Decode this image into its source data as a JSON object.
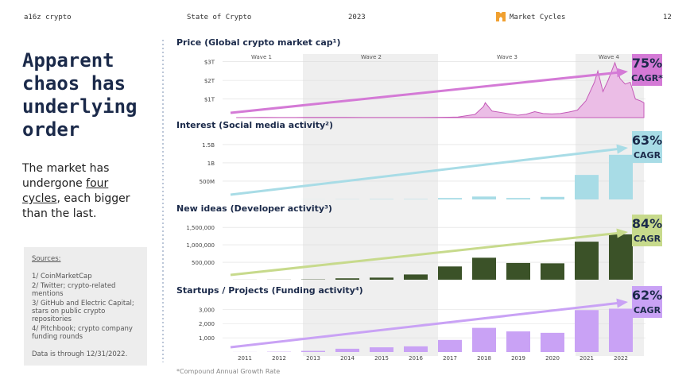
{
  "header": {
    "brand": "a16z crypto",
    "report": "State of Crypto",
    "year": "2023",
    "section": "Market Cycles",
    "page": "12"
  },
  "headline": "Apparent chaos has underlying order",
  "body": [
    "The market has undergone ",
    "four cycles",
    ", each bigger than the last."
  ],
  "sources": {
    "title": "Sources:",
    "items": [
      "1/ CoinMarketCap",
      "2/ Twitter; crypto-related mentions",
      "3/ GitHub and Electric Capital; stars on public crypto repositories",
      "4/ Pitchbook; crypto company funding rounds"
    ],
    "note": "Data is through 12/31/2022."
  },
  "waves": [
    "Wave 1",
    "Wave 2",
    "Wave 3",
    "Wave 4"
  ],
  "footnote": "*Compound Annual Growth Rate",
  "chart_data": [
    {
      "type": "area",
      "title": "Price (Global crypto market cap¹)",
      "x": [
        2010.75,
        2011,
        2011.5,
        2012,
        2012.5,
        2013,
        2013.5,
        2013.9,
        2014,
        2014.5,
        2015,
        2015.5,
        2016,
        2016.5,
        2017,
        2017.25,
        2017.5,
        2017.75,
        2018,
        2018.05,
        2018.25,
        2018.5,
        2018.75,
        2019,
        2019.25,
        2019.5,
        2019.75,
        2020,
        2020.25,
        2020.5,
        2020.75,
        2021,
        2021.25,
        2021.35,
        2021.5,
        2021.65,
        2021.85,
        2022,
        2022.15,
        2022.3,
        2022.45,
        2022.6,
        2022.7
      ],
      "values": [
        0,
        0,
        0.01,
        0.005,
        0.007,
        0.01,
        0.01,
        0.013,
        0.01,
        0.008,
        0.004,
        0.004,
        0.007,
        0.01,
        0.02,
        0.03,
        0.1,
        0.17,
        0.6,
        0.8,
        0.35,
        0.28,
        0.2,
        0.13,
        0.18,
        0.32,
        0.22,
        0.2,
        0.22,
        0.3,
        0.4,
        0.9,
        1.9,
        2.5,
        1.4,
        2.0,
        2.95,
        2.1,
        1.8,
        1.9,
        1.0,
        0.9,
        0.8
      ],
      "xlim": [
        2010.7,
        2022.7
      ],
      "ylim": [
        0,
        3.2
      ],
      "yticks": [
        {
          "value": 1,
          "label": "$1T"
        },
        {
          "value": 2,
          "label": "$2T"
        },
        {
          "value": 3,
          "label": "$3T"
        }
      ],
      "color": "#c45ab8",
      "grid": true,
      "annotation": [
        "75%",
        "CAGR*"
      ],
      "annotation_color": "#d47ad6"
    },
    {
      "type": "bar",
      "title": "Interest (Social media activity²)",
      "values": [
        0,
        0,
        0.002,
        0.005,
        0.01,
        0.01,
        0.04,
        0.08,
        0.04,
        0.07,
        0.67,
        1.22
      ],
      "ylim": [
        0,
        1.65
      ],
      "yticks": [
        {
          "value": 0.5,
          "label": "500M"
        },
        {
          "value": 1,
          "label": "1B"
        },
        {
          "value": 1.5,
          "label": "1.5B"
        }
      ],
      "color": "#a8dce6",
      "grid": true,
      "annotation": [
        "63%",
        "CAGR"
      ],
      "annotation_color": "#a8dce6"
    },
    {
      "type": "bar",
      "title": "New ideas (Developer activity³)",
      "values": [
        2000,
        3000,
        8000,
        40000,
        60000,
        150000,
        380000,
        630000,
        480000,
        470000,
        1090000,
        1300000
      ],
      "ylim": [
        0,
        1640000
      ],
      "yticks": [
        {
          "value": 500000,
          "label": "500,000"
        },
        {
          "value": 1000000,
          "label": "1,000,000"
        },
        {
          "value": 1500000,
          "label": "1,500,000"
        }
      ],
      "color": "#3b5228",
      "grid": true,
      "annotation": [
        "84%",
        "CAGR"
      ],
      "annotation_color": "#c7da8c"
    },
    {
      "type": "bar",
      "title": "Startups / Projects (Funding activity⁴)",
      "categories": [
        "2011",
        "2012",
        "2013",
        "2014",
        "2015",
        "2016",
        "2017",
        "2018",
        "2019",
        "2020",
        "2021",
        "2022"
      ],
      "values": [
        5,
        20,
        80,
        230,
        330,
        400,
        850,
        1700,
        1450,
        1350,
        2950,
        3050
      ],
      "ylim": [
        0,
        3300
      ],
      "yticks": [
        {
          "value": 1000,
          "label": "1,000"
        },
        {
          "value": 2000,
          "label": "2,000"
        },
        {
          "value": 3000,
          "label": "3,000"
        }
      ],
      "color": "#c9a2f5",
      "grid": true,
      "annotation": [
        "62%",
        "CAGR"
      ],
      "annotation_color": "#c9a2f5"
    }
  ]
}
